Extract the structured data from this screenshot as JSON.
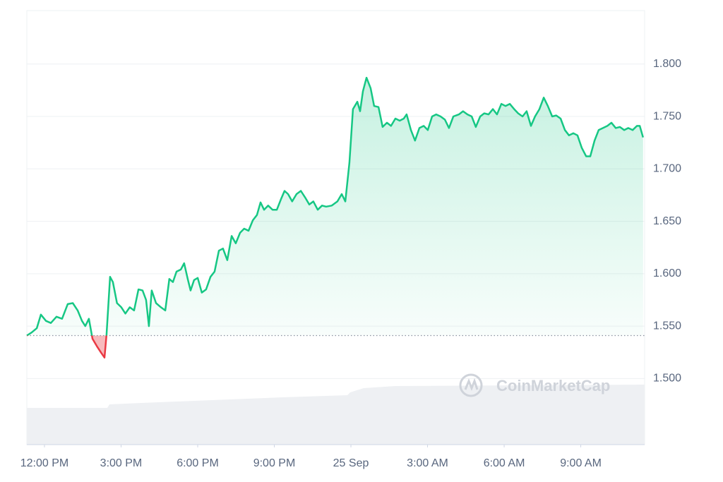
{
  "chart_data": {
    "type": "line",
    "watermark": "CoinMarketCap",
    "x": [
      11.31,
      11.5,
      11.7,
      11.86,
      12.06,
      12.25,
      12.47,
      12.69,
      12.91,
      13.11,
      13.3,
      13.47,
      13.6,
      13.74,
      13.88,
      14.05,
      14.21,
      14.35,
      14.43,
      14.57,
      14.68,
      14.84,
      15.01,
      15.17,
      15.34,
      15.51,
      15.68,
      15.84,
      15.98,
      16.09,
      16.2,
      16.37,
      16.56,
      16.73,
      16.89,
      17.03,
      17.17,
      17.34,
      17.47,
      17.61,
      17.72,
      17.86,
      18.0,
      18.16,
      18.33,
      18.5,
      18.66,
      18.83,
      18.99,
      19.16,
      19.33,
      19.49,
      19.66,
      19.82,
      19.99,
      20.16,
      20.32,
      20.46,
      20.6,
      20.76,
      20.93,
      21.1,
      21.26,
      21.4,
      21.54,
      21.7,
      21.87,
      22.04,
      22.2,
      22.37,
      22.53,
      22.7,
      22.87,
      23.03,
      23.25,
      23.47,
      23.64,
      23.78,
      23.94,
      24.08,
      24.25,
      24.36,
      24.47,
      24.61,
      24.77,
      24.91,
      25.08,
      25.24,
      25.41,
      25.57,
      25.74,
      25.91,
      26.07,
      26.18,
      26.35,
      26.51,
      26.68,
      26.85,
      27.01,
      27.18,
      27.34,
      27.51,
      27.68,
      27.84,
      28.01,
      28.23,
      28.39,
      28.56,
      28.73,
      28.89,
      29.06,
      29.22,
      29.39,
      29.56,
      29.72,
      29.89,
      30.05,
      30.22,
      30.39,
      30.55,
      30.72,
      30.88,
      31.05,
      31.21,
      31.38,
      31.55,
      31.71,
      31.88,
      32.04,
      32.21,
      32.38,
      32.54,
      32.71,
      32.87,
      33.04,
      33.21,
      33.37,
      33.54,
      33.7,
      33.87,
      34.04,
      34.2,
      34.37,
      34.53,
      34.7,
      34.86,
      35.03,
      35.2,
      35.31,
      35.44
    ],
    "values": [
      1.541,
      1.544,
      1.548,
      1.561,
      1.555,
      1.553,
      1.559,
      1.557,
      1.571,
      1.572,
      1.565,
      1.555,
      1.55,
      1.557,
      1.538,
      1.531,
      1.525,
      1.52,
      1.542,
      1.597,
      1.592,
      1.572,
      1.568,
      1.562,
      1.568,
      1.565,
      1.585,
      1.584,
      1.575,
      1.55,
      1.584,
      1.572,
      1.568,
      1.565,
      1.595,
      1.592,
      1.602,
      1.604,
      1.61,
      1.595,
      1.584,
      1.594,
      1.596,
      1.582,
      1.585,
      1.597,
      1.602,
      1.622,
      1.624,
      1.613,
      1.636,
      1.629,
      1.639,
      1.643,
      1.641,
      1.651,
      1.656,
      1.668,
      1.661,
      1.665,
      1.661,
      1.661,
      1.671,
      1.679,
      1.676,
      1.669,
      1.676,
      1.679,
      1.673,
      1.666,
      1.669,
      1.661,
      1.665,
      1.664,
      1.665,
      1.669,
      1.676,
      1.669,
      1.706,
      1.757,
      1.764,
      1.755,
      1.774,
      1.787,
      1.777,
      1.76,
      1.759,
      1.74,
      1.744,
      1.741,
      1.748,
      1.746,
      1.748,
      1.752,
      1.737,
      1.727,
      1.739,
      1.741,
      1.737,
      1.75,
      1.752,
      1.75,
      1.747,
      1.739,
      1.75,
      1.752,
      1.755,
      1.752,
      1.75,
      1.74,
      1.75,
      1.753,
      1.752,
      1.757,
      1.752,
      1.762,
      1.76,
      1.762,
      1.757,
      1.753,
      1.75,
      1.755,
      1.741,
      1.75,
      1.757,
      1.768,
      1.76,
      1.75,
      1.751,
      1.748,
      1.737,
      1.732,
      1.734,
      1.732,
      1.72,
      1.712,
      1.712,
      1.727,
      1.737,
      1.739,
      1.741,
      1.744,
      1.739,
      1.74,
      1.737,
      1.739,
      1.737,
      1.741,
      1.741,
      1.73
    ],
    "reference_line": 1.541,
    "color": "#16c784",
    "down_color": "#ea3943",
    "xlim": [
      11.31,
      35.5
    ],
    "xticks": [
      {
        "value": 12,
        "label": "12:00 PM"
      },
      {
        "value": 15,
        "label": "3:00 PM"
      },
      {
        "value": 18,
        "label": "6:00 PM"
      },
      {
        "value": 21,
        "label": "9:00 PM"
      },
      {
        "value": 24,
        "label": "25 Sep"
      },
      {
        "value": 27,
        "label": "3:00 AM"
      },
      {
        "value": 30,
        "label": "6:00 AM"
      },
      {
        "value": 33,
        "label": "9:00 AM"
      }
    ],
    "ylim": [
      1.437,
      1.851
    ],
    "yticks": [
      {
        "value": 1.5,
        "label": "1.500"
      },
      {
        "value": 1.55,
        "label": "1.550"
      },
      {
        "value": 1.6,
        "label": "1.600"
      },
      {
        "value": 1.65,
        "label": "1.650"
      },
      {
        "value": 1.7,
        "label": "1.700"
      },
      {
        "value": 1.75,
        "label": "1.750"
      },
      {
        "value": 1.8,
        "label": "1.800"
      }
    ],
    "grid": true
  }
}
